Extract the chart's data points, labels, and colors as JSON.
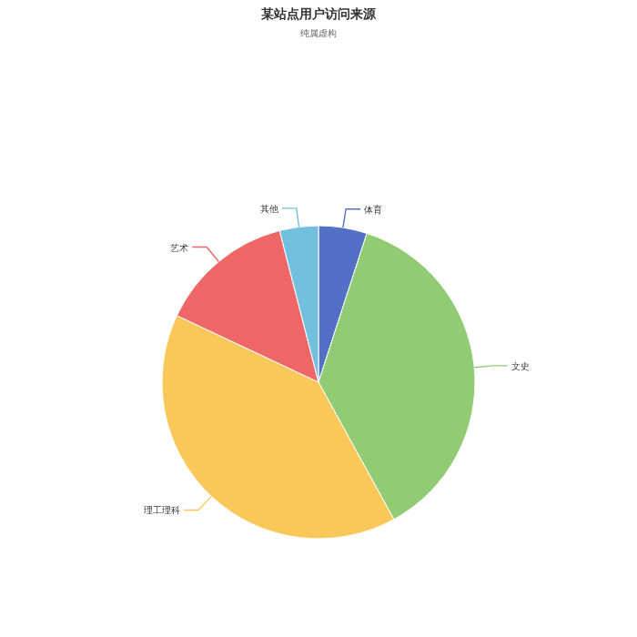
{
  "chart_data": {
    "type": "pie",
    "title": "某站点用户访问来源",
    "subtitle": "纯属虚构",
    "categories": [
      "体育",
      "文史",
      "理工理科",
      "艺术",
      "其他"
    ],
    "values": [
      5,
      37,
      40,
      14,
      4
    ],
    "colors": [
      "#5470c6",
      "#91cc75",
      "#fac858",
      "#ee6666",
      "#73c0de"
    ]
  }
}
